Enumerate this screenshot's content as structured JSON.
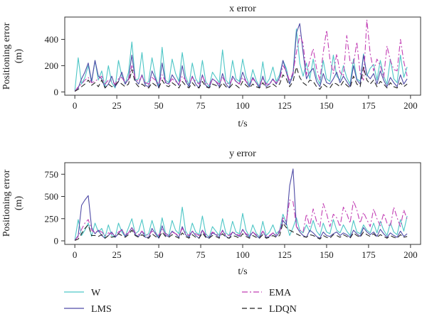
{
  "figure": {
    "ylabel": "Positioning error\n(m)",
    "xlabel": "t/s"
  },
  "legend": [
    {
      "name": "W",
      "color": "#4dc6c6",
      "dash": "solid"
    },
    {
      "name": "LMS",
      "color": "#4f4ba6",
      "dash": "solid"
    },
    {
      "name": "EMA",
      "color": "#c23fb4",
      "dash": "dashdot"
    },
    {
      "name": "LDQN",
      "color": "#222222",
      "dash": "dashed"
    }
  ],
  "chart_data": [
    {
      "type": "line",
      "title": "x error",
      "xlabel": "t/s",
      "ylabel": "Positioning error\n(m)",
      "xlim": [
        -6,
        206
      ],
      "ylim": [
        -25,
        570
      ],
      "xticks": [
        0,
        25,
        50,
        75,
        100,
        125,
        150,
        175,
        200
      ],
      "yticks": [
        0,
        200,
        400
      ],
      "x": [
        0,
        2,
        4,
        6,
        8,
        10,
        12,
        14,
        16,
        18,
        20,
        22,
        24,
        26,
        28,
        30,
        32,
        34,
        36,
        38,
        40,
        42,
        44,
        46,
        48,
        50,
        52,
        54,
        56,
        58,
        60,
        62,
        64,
        66,
        68,
        70,
        72,
        74,
        76,
        78,
        80,
        82,
        84,
        86,
        88,
        90,
        92,
        94,
        96,
        98,
        100,
        102,
        104,
        106,
        108,
        110,
        112,
        114,
        116,
        118,
        120,
        122,
        124,
        126,
        128,
        130,
        132,
        134,
        136,
        138,
        140,
        142,
        144,
        146,
        148,
        150,
        152,
        154,
        156,
        158,
        160,
        162,
        164,
        166,
        168,
        170,
        172,
        174,
        176,
        178,
        180,
        182,
        184,
        186,
        188,
        190,
        192,
        194,
        196,
        198
      ],
      "series": [
        {
          "name": "W",
          "values": [
            10,
            260,
            60,
            110,
            200,
            70,
            240,
            90,
            160,
            40,
            200,
            70,
            30,
            240,
            120,
            60,
            150,
            380,
            90,
            100,
            300,
            60,
            80,
            260,
            120,
            40,
            340,
            90,
            70,
            250,
            140,
            80,
            300,
            120,
            50,
            220,
            100,
            60,
            240,
            80,
            40,
            150,
            110,
            70,
            320,
            90,
            60,
            240,
            100,
            80,
            250,
            120,
            50,
            170,
            90,
            40,
            230,
            60,
            100,
            190,
            80,
            130,
            240,
            180,
            60,
            150,
            480,
            220,
            120,
            220,
            100,
            250,
            110,
            60,
            240,
            100,
            80,
            280,
            120,
            90,
            200,
            110,
            60,
            250,
            100,
            80,
            290,
            120,
            180,
            210,
            90,
            240,
            120,
            60,
            250,
            100,
            70,
            280,
            110,
            190
          ]
        },
        {
          "name": "LMS",
          "values": [
            5,
            30,
            100,
            150,
            220,
            80,
            240,
            120,
            100,
            30,
            60,
            120,
            40,
            80,
            150,
            60,
            100,
            280,
            90,
            60,
            130,
            50,
            40,
            160,
            100,
            30,
            220,
            70,
            60,
            130,
            90,
            50,
            200,
            80,
            40,
            120,
            60,
            30,
            130,
            50,
            30,
            100,
            80,
            40,
            140,
            60,
            30,
            120,
            80,
            60,
            150,
            80,
            40,
            110,
            70,
            30,
            120,
            40,
            60,
            100,
            60,
            110,
            240,
            150,
            60,
            130,
            450,
            520,
            300,
            100,
            150,
            180,
            80,
            40,
            140,
            70,
            60,
            100,
            150,
            70,
            120,
            80,
            40,
            200,
            90,
            60,
            280,
            130,
            100,
            140,
            60,
            160,
            90,
            40,
            110,
            70,
            40,
            130,
            60,
            100
          ]
        },
        {
          "name": "EMA",
          "values": [
            5,
            40,
            60,
            90,
            110,
            70,
            80,
            100,
            120,
            60,
            90,
            80,
            60,
            100,
            110,
            70,
            90,
            200,
            100,
            80,
            120,
            70,
            60,
            110,
            90,
            60,
            130,
            80,
            60,
            100,
            80,
            60,
            120,
            90,
            60,
            110,
            80,
            60,
            120,
            70,
            50,
            100,
            80,
            60,
            110,
            70,
            60,
            100,
            80,
            60,
            110,
            80,
            60,
            100,
            70,
            50,
            100,
            60,
            60,
            90,
            70,
            90,
            200,
            160,
            80,
            150,
            300,
            430,
            370,
            130,
            240,
            330,
            180,
            90,
            300,
            470,
            250,
            140,
            290,
            150,
            120,
            430,
            230,
            210,
            380,
            140,
            90,
            550,
            290,
            160,
            250,
            200,
            110,
            350,
            240,
            170,
            160,
            400,
            230,
            120
          ]
        },
        {
          "name": "LDQN",
          "values": [
            5,
            20,
            40,
            60,
            90,
            50,
            70,
            40,
            90,
            30,
            60,
            40,
            50,
            80,
            60,
            40,
            60,
            170,
            70,
            40,
            60,
            40,
            30,
            70,
            50,
            30,
            90,
            50,
            40,
            70,
            50,
            30,
            80,
            50,
            30,
            70,
            40,
            30,
            80,
            40,
            30,
            60,
            50,
            30,
            70,
            40,
            30,
            60,
            50,
            30,
            80,
            50,
            30,
            60,
            40,
            30,
            70,
            30,
            40,
            60,
            40,
            60,
            130,
            100,
            40,
            80,
            190,
            110,
            70,
            50,
            90,
            80,
            40,
            20,
            60,
            40,
            30,
            70,
            60,
            40,
            80,
            50,
            30,
            120,
            60,
            40,
            190,
            90,
            60,
            90,
            40,
            80,
            60,
            30,
            70,
            40,
            30,
            70,
            40,
            60
          ]
        }
      ]
    },
    {
      "type": "line",
      "title": "y error",
      "xlabel": "t/s",
      "ylabel": "Positioning error\n(m)",
      "xlim": [
        -6,
        206
      ],
      "ylim": [
        -40,
        880
      ],
      "xticks": [
        0,
        25,
        50,
        75,
        100,
        125,
        150,
        175,
        200
      ],
      "yticks": [
        0,
        250,
        500,
        750
      ],
      "x": [
        0,
        2,
        4,
        6,
        8,
        10,
        12,
        14,
        16,
        18,
        20,
        22,
        24,
        26,
        28,
        30,
        32,
        34,
        36,
        38,
        40,
        42,
        44,
        46,
        48,
        50,
        52,
        54,
        56,
        58,
        60,
        62,
        64,
        66,
        68,
        70,
        72,
        74,
        76,
        78,
        80,
        82,
        84,
        86,
        88,
        90,
        92,
        94,
        96,
        98,
        100,
        102,
        104,
        106,
        108,
        110,
        112,
        114,
        116,
        118,
        120,
        122,
        124,
        126,
        128,
        130,
        132,
        134,
        136,
        138,
        140,
        142,
        144,
        146,
        148,
        150,
        152,
        154,
        156,
        158,
        160,
        162,
        164,
        166,
        168,
        170,
        172,
        174,
        176,
        178,
        180,
        182,
        184,
        186,
        188,
        190,
        192,
        194,
        196,
        198
      ],
      "series": [
        {
          "name": "W",
          "values": [
            10,
            240,
            60,
            120,
            200,
            50,
            200,
            100,
            140,
            40,
            180,
            60,
            40,
            200,
            100,
            50,
            150,
            250,
            80,
            110,
            240,
            60,
            80,
            230,
            100,
            40,
            260,
            90,
            60,
            230,
            120,
            80,
            380,
            110,
            50,
            200,
            100,
            70,
            280,
            80,
            40,
            160,
            110,
            60,
            250,
            90,
            60,
            220,
            100,
            80,
            310,
            120,
            50,
            180,
            90,
            40,
            220,
            60,
            100,
            180,
            80,
            120,
            300,
            200,
            60,
            150,
            260,
            120,
            90,
            180,
            100,
            230,
            110,
            60,
            200,
            100,
            80,
            240,
            120,
            90,
            180,
            110,
            60,
            230,
            100,
            80,
            180,
            120,
            90,
            200,
            90,
            220,
            120,
            60,
            200,
            100,
            70,
            240,
            110,
            280
          ]
        },
        {
          "name": "LMS",
          "values": [
            5,
            60,
            400,
            460,
            510,
            150,
            80,
            120,
            60,
            30,
            60,
            100,
            40,
            80,
            130,
            50,
            90,
            150,
            70,
            50,
            110,
            40,
            40,
            140,
            80,
            30,
            170,
            60,
            50,
            110,
            80,
            40,
            160,
            70,
            40,
            110,
            60,
            30,
            120,
            50,
            30,
            90,
            70,
            40,
            120,
            50,
            30,
            100,
            70,
            50,
            130,
            70,
            40,
            100,
            60,
            30,
            110,
            40,
            50,
            90,
            50,
            100,
            230,
            180,
            620,
            810,
            160,
            100,
            60,
            40,
            120,
            90,
            50,
            30,
            100,
            60,
            50,
            80,
            100,
            60,
            90,
            70,
            40,
            120,
            80,
            50,
            150,
            100,
            70,
            100,
            50,
            130,
            80,
            40,
            90,
            60,
            40,
            110,
            50,
            80
          ]
        },
        {
          "name": "EMA",
          "values": [
            5,
            50,
            130,
            200,
            240,
            120,
            90,
            120,
            100,
            60,
            90,
            80,
            60,
            100,
            120,
            70,
            90,
            150,
            90,
            70,
            110,
            70,
            60,
            110,
            90,
            60,
            130,
            80,
            60,
            100,
            80,
            60,
            140,
            90,
            60,
            110,
            80,
            60,
            120,
            70,
            50,
            100,
            80,
            60,
            110,
            70,
            60,
            100,
            80,
            60,
            120,
            80,
            60,
            100,
            70,
            50,
            110,
            60,
            60,
            90,
            70,
            110,
            260,
            220,
            460,
            440,
            160,
            120,
            100,
            300,
            160,
            360,
            220,
            160,
            420,
            310,
            160,
            300,
            260,
            160,
            380,
            310,
            200,
            450,
            350,
            200,
            320,
            240,
            160,
            360,
            250,
            170,
            310,
            200,
            160,
            380,
            260,
            160,
            350,
            240
          ]
        },
        {
          "name": "LDQN",
          "values": [
            5,
            20,
            80,
            140,
            180,
            60,
            60,
            50,
            70,
            30,
            60,
            40,
            50,
            80,
            60,
            40,
            70,
            120,
            60,
            40,
            70,
            40,
            30,
            80,
            50,
            30,
            100,
            50,
            40,
            70,
            50,
            30,
            90,
            50,
            30,
            70,
            40,
            30,
            90,
            40,
            30,
            60,
            50,
            30,
            80,
            40,
            30,
            60,
            50,
            30,
            80,
            50,
            30,
            60,
            40,
            30,
            70,
            30,
            40,
            60,
            40,
            60,
            200,
            150,
            120,
            100,
            80,
            60,
            50,
            40,
            70,
            60,
            40,
            20,
            60,
            40,
            30,
            70,
            60,
            40,
            70,
            50,
            30,
            90,
            60,
            40,
            100,
            70,
            50,
            80,
            40,
            70,
            50,
            30,
            60,
            40,
            30,
            70,
            40,
            50
          ]
        }
      ]
    }
  ]
}
